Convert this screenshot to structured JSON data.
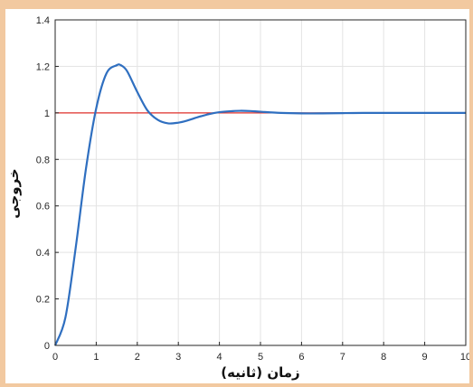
{
  "chart_data": {
    "type": "line",
    "xlabel": "زمان (ثانیه)",
    "ylabel": "خروجی",
    "xlim": [
      0,
      10
    ],
    "ylim": [
      0,
      1.4
    ],
    "xticks": [
      0,
      1,
      2,
      3,
      4,
      5,
      6,
      7,
      8,
      9,
      10
    ],
    "yticks": [
      0,
      0.2,
      0.4,
      0.6,
      0.8,
      1,
      1.2,
      1.4
    ],
    "xtick_labels": [
      "0",
      "1",
      "2",
      "3",
      "4",
      "5",
      "6",
      "7",
      "8",
      "9",
      "10"
    ],
    "ytick_labels": [
      "0",
      "0.2",
      "0.4",
      "0.6",
      "0.8",
      "1",
      "1.2",
      "1.4"
    ],
    "grid": true,
    "series": [
      {
        "kind": "step-response",
        "color": "#2f6fc0",
        "x": [
          0,
          0.25,
          0.5,
          0.75,
          1.0,
          1.25,
          1.5,
          1.6,
          1.75,
          2.0,
          2.25,
          2.5,
          2.75,
          3.0,
          3.2,
          3.5,
          3.75,
          4.0,
          4.25,
          4.5,
          4.75,
          5.0,
          5.5,
          6.0,
          6.5,
          7.0,
          7.5,
          8.0,
          8.5,
          9.0,
          9.5,
          10.0
        ],
        "y": [
          0,
          0.12,
          0.42,
          0.76,
          1.02,
          1.17,
          1.205,
          1.205,
          1.18,
          1.09,
          1.01,
          0.97,
          0.955,
          0.958,
          0.966,
          0.983,
          0.995,
          1.003,
          1.007,
          1.009,
          1.008,
          1.005,
          1.0,
          0.998,
          0.998,
          0.999,
          1.0,
          1.0,
          1.0,
          1.0,
          1.0,
          1.0
        ]
      },
      {
        "kind": "reference",
        "color": "#e0302a",
        "x": [
          0,
          10
        ],
        "y": [
          1,
          1
        ]
      }
    ]
  }
}
